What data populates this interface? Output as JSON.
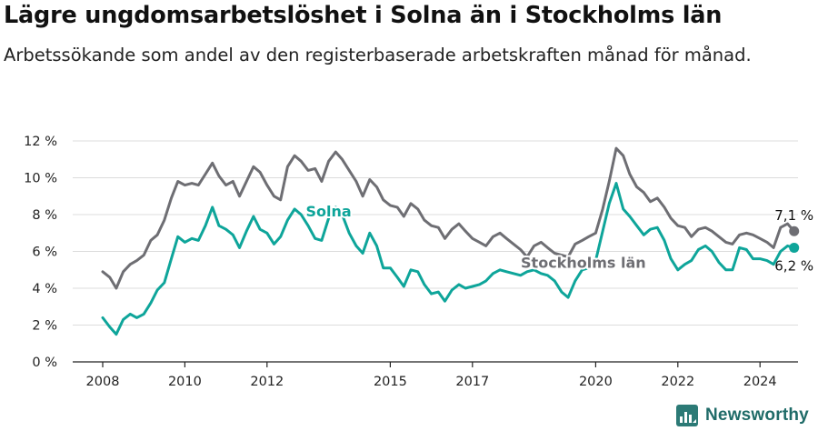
{
  "chart_data": {
    "type": "line",
    "title": "Lägre ungdomsarbetslöshet i Solna än i Stockholms län",
    "subtitle": "Arbetssökande som andel av den registerbaserade arbetskraften månad för månad.",
    "xlabel": "",
    "ylabel": "",
    "xlim": [
      2008,
      2025.5
    ],
    "ylim": [
      0,
      12
    ],
    "y_ticks": [
      0,
      2,
      4,
      6,
      8,
      10,
      12
    ],
    "y_tick_labels": [
      "0 %",
      "2 %",
      "4 %",
      "6 %",
      "8 %",
      "10 %",
      "12 %"
    ],
    "x_ticks": [
      2008,
      2010,
      2012,
      2015,
      2017,
      2020,
      2022,
      2024
    ],
    "x_tick_labels": [
      "2008",
      "2010",
      "2012",
      "2015",
      "2017",
      "2020",
      "2022",
      "2024"
    ],
    "grid": true,
    "legend": "direct labels",
    "series": [
      {
        "name": "Stockholms län",
        "color": "#6e6e73",
        "end_label": "7,1 %",
        "points": [
          [
            2008.0,
            4.9
          ],
          [
            2008.17,
            4.6
          ],
          [
            2008.33,
            4.0
          ],
          [
            2008.5,
            4.9
          ],
          [
            2008.67,
            5.3
          ],
          [
            2008.83,
            5.5
          ],
          [
            2009.0,
            5.8
          ],
          [
            2009.17,
            6.6
          ],
          [
            2009.33,
            6.9
          ],
          [
            2009.5,
            7.7
          ],
          [
            2009.67,
            8.9
          ],
          [
            2009.83,
            9.8
          ],
          [
            2010.0,
            9.6
          ],
          [
            2010.17,
            9.7
          ],
          [
            2010.33,
            9.6
          ],
          [
            2010.5,
            10.2
          ],
          [
            2010.67,
            10.8
          ],
          [
            2010.83,
            10.1
          ],
          [
            2011.0,
            9.6
          ],
          [
            2011.17,
            9.8
          ],
          [
            2011.33,
            9.0
          ],
          [
            2011.5,
            9.8
          ],
          [
            2011.67,
            10.6
          ],
          [
            2011.83,
            10.3
          ],
          [
            2012.0,
            9.6
          ],
          [
            2012.17,
            9.0
          ],
          [
            2012.33,
            8.8
          ],
          [
            2012.5,
            10.6
          ],
          [
            2012.67,
            11.2
          ],
          [
            2012.83,
            10.9
          ],
          [
            2013.0,
            10.4
          ],
          [
            2013.17,
            10.5
          ],
          [
            2013.33,
            9.8
          ],
          [
            2013.5,
            10.9
          ],
          [
            2013.67,
            11.4
          ],
          [
            2013.83,
            11.0
          ],
          [
            2014.0,
            10.4
          ],
          [
            2014.17,
            9.8
          ],
          [
            2014.33,
            9.0
          ],
          [
            2014.5,
            9.9
          ],
          [
            2014.67,
            9.5
          ],
          [
            2014.83,
            8.8
          ],
          [
            2015.0,
            8.5
          ],
          [
            2015.17,
            8.4
          ],
          [
            2015.33,
            7.9
          ],
          [
            2015.5,
            8.6
          ],
          [
            2015.67,
            8.3
          ],
          [
            2015.83,
            7.7
          ],
          [
            2016.0,
            7.4
          ],
          [
            2016.17,
            7.3
          ],
          [
            2016.33,
            6.7
          ],
          [
            2016.5,
            7.2
          ],
          [
            2016.67,
            7.5
          ],
          [
            2016.83,
            7.1
          ],
          [
            2017.0,
            6.7
          ],
          [
            2017.17,
            6.5
          ],
          [
            2017.33,
            6.3
          ],
          [
            2017.5,
            6.8
          ],
          [
            2017.67,
            7.0
          ],
          [
            2017.83,
            6.7
          ],
          [
            2018.0,
            6.4
          ],
          [
            2018.17,
            6.1
          ],
          [
            2018.33,
            5.7
          ],
          [
            2018.5,
            6.3
          ],
          [
            2018.67,
            6.5
          ],
          [
            2018.83,
            6.2
          ],
          [
            2019.0,
            5.9
          ],
          [
            2019.17,
            5.8
          ],
          [
            2019.33,
            5.7
          ],
          [
            2019.5,
            6.4
          ],
          [
            2019.67,
            6.6
          ],
          [
            2019.83,
            6.8
          ],
          [
            2020.0,
            7.0
          ],
          [
            2020.17,
            8.3
          ],
          [
            2020.33,
            9.8
          ],
          [
            2020.5,
            11.6
          ],
          [
            2020.67,
            11.2
          ],
          [
            2020.83,
            10.2
          ],
          [
            2021.0,
            9.5
          ],
          [
            2021.17,
            9.2
          ],
          [
            2021.33,
            8.7
          ],
          [
            2021.5,
            8.9
          ],
          [
            2021.67,
            8.4
          ],
          [
            2021.83,
            7.8
          ],
          [
            2022.0,
            7.4
          ],
          [
            2022.17,
            7.3
          ],
          [
            2022.33,
            6.8
          ],
          [
            2022.5,
            7.2
          ],
          [
            2022.67,
            7.3
          ],
          [
            2022.83,
            7.1
          ],
          [
            2023.0,
            6.8
          ],
          [
            2023.17,
            6.5
          ],
          [
            2023.33,
            6.4
          ],
          [
            2023.5,
            6.9
          ],
          [
            2023.67,
            7.0
          ],
          [
            2023.83,
            6.9
          ],
          [
            2024.0,
            6.7
          ],
          [
            2024.17,
            6.5
          ],
          [
            2024.33,
            6.2
          ],
          [
            2024.5,
            7.3
          ],
          [
            2024.67,
            7.5
          ],
          [
            2024.83,
            7.1
          ]
        ]
      },
      {
        "name": "Solna",
        "color": "#0ea59a",
        "end_label": "6,2 %",
        "points": [
          [
            2008.0,
            2.4
          ],
          [
            2008.17,
            1.9
          ],
          [
            2008.33,
            1.5
          ],
          [
            2008.5,
            2.3
          ],
          [
            2008.67,
            2.6
          ],
          [
            2008.83,
            2.4
          ],
          [
            2009.0,
            2.6
          ],
          [
            2009.17,
            3.2
          ],
          [
            2009.33,
            3.9
          ],
          [
            2009.5,
            4.3
          ],
          [
            2009.67,
            5.6
          ],
          [
            2009.83,
            6.8
          ],
          [
            2010.0,
            6.5
          ],
          [
            2010.17,
            6.7
          ],
          [
            2010.33,
            6.6
          ],
          [
            2010.5,
            7.4
          ],
          [
            2010.67,
            8.4
          ],
          [
            2010.83,
            7.4
          ],
          [
            2011.0,
            7.2
          ],
          [
            2011.17,
            6.9
          ],
          [
            2011.33,
            6.2
          ],
          [
            2011.5,
            7.1
          ],
          [
            2011.67,
            7.9
          ],
          [
            2011.83,
            7.2
          ],
          [
            2012.0,
            7.0
          ],
          [
            2012.17,
            6.4
          ],
          [
            2012.33,
            6.8
          ],
          [
            2012.5,
            7.7
          ],
          [
            2012.67,
            8.3
          ],
          [
            2012.83,
            8.0
          ],
          [
            2013.0,
            7.4
          ],
          [
            2013.17,
            6.7
          ],
          [
            2013.33,
            6.6
          ],
          [
            2013.5,
            7.8
          ],
          [
            2013.67,
            8.4
          ],
          [
            2013.83,
            8.0
          ],
          [
            2014.0,
            7.0
          ],
          [
            2014.17,
            6.3
          ],
          [
            2014.33,
            5.9
          ],
          [
            2014.5,
            7.0
          ],
          [
            2014.67,
            6.3
          ],
          [
            2014.83,
            5.1
          ],
          [
            2015.0,
            5.1
          ],
          [
            2015.17,
            4.6
          ],
          [
            2015.33,
            4.1
          ],
          [
            2015.5,
            5.0
          ],
          [
            2015.67,
            4.9
          ],
          [
            2015.83,
            4.2
          ],
          [
            2016.0,
            3.7
          ],
          [
            2016.17,
            3.8
          ],
          [
            2016.33,
            3.3
          ],
          [
            2016.5,
            3.9
          ],
          [
            2016.67,
            4.2
          ],
          [
            2016.83,
            4.0
          ],
          [
            2017.0,
            4.1
          ],
          [
            2017.17,
            4.2
          ],
          [
            2017.33,
            4.4
          ],
          [
            2017.5,
            4.8
          ],
          [
            2017.67,
            5.0
          ],
          [
            2017.83,
            4.9
          ],
          [
            2018.0,
            4.8
          ],
          [
            2018.17,
            4.7
          ],
          [
            2018.33,
            4.9
          ],
          [
            2018.5,
            5.0
          ],
          [
            2018.67,
            4.8
          ],
          [
            2018.83,
            4.7
          ],
          [
            2019.0,
            4.4
          ],
          [
            2019.17,
            3.8
          ],
          [
            2019.33,
            3.5
          ],
          [
            2019.5,
            4.4
          ],
          [
            2019.67,
            5.0
          ],
          [
            2019.83,
            5.1
          ],
          [
            2020.0,
            5.5
          ],
          [
            2020.17,
            7.1
          ],
          [
            2020.33,
            8.6
          ],
          [
            2020.5,
            9.7
          ],
          [
            2020.67,
            8.3
          ],
          [
            2020.83,
            7.9
          ],
          [
            2021.0,
            7.4
          ],
          [
            2021.17,
            6.9
          ],
          [
            2021.33,
            7.2
          ],
          [
            2021.5,
            7.3
          ],
          [
            2021.67,
            6.6
          ],
          [
            2021.83,
            5.6
          ],
          [
            2022.0,
            5.0
          ],
          [
            2022.17,
            5.3
          ],
          [
            2022.33,
            5.5
          ],
          [
            2022.5,
            6.1
          ],
          [
            2022.67,
            6.3
          ],
          [
            2022.83,
            6.0
          ],
          [
            2023.0,
            5.4
          ],
          [
            2023.17,
            5.0
          ],
          [
            2023.33,
            5.0
          ],
          [
            2023.5,
            6.2
          ],
          [
            2023.67,
            6.1
          ],
          [
            2023.83,
            5.6
          ],
          [
            2024.0,
            5.6
          ],
          [
            2024.17,
            5.5
          ],
          [
            2024.33,
            5.3
          ],
          [
            2024.5,
            6.0
          ],
          [
            2024.67,
            6.3
          ],
          [
            2024.83,
            6.2
          ]
        ]
      }
    ],
    "series_labels": [
      {
        "text": "Solna",
        "series": "Solna"
      },
      {
        "text": "Stockholms län",
        "series": "Stockholms län"
      }
    ]
  },
  "footer": {
    "brand_name": "Newsworthy"
  },
  "colors": {
    "grid": "#dcdcdc",
    "axis": "#222222",
    "tick_text": "#222222",
    "brand": "#1f6b68"
  }
}
